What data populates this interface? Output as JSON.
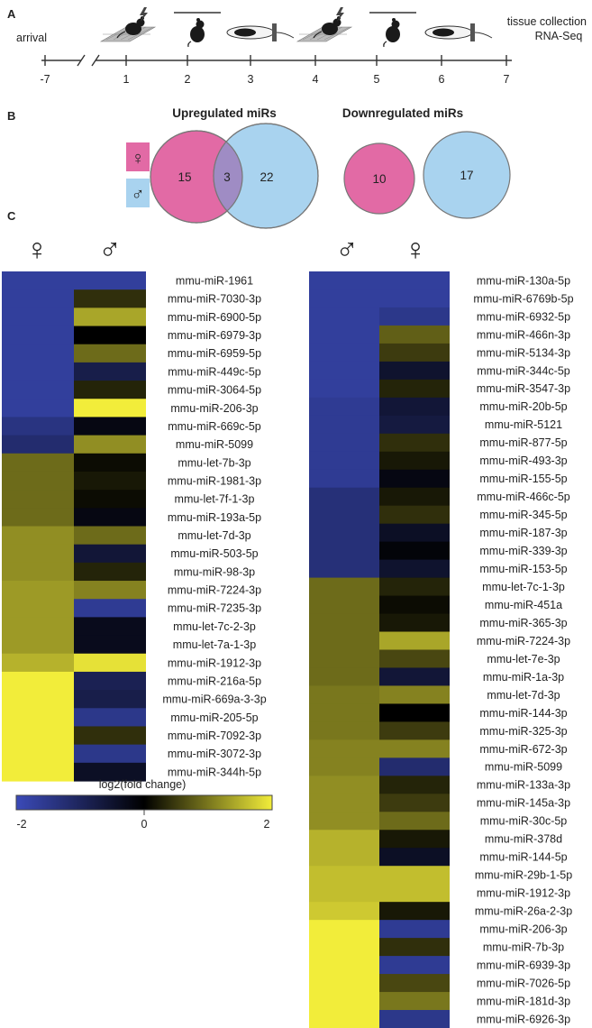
{
  "panels": {
    "a": "A",
    "b": "B",
    "c": "C"
  },
  "timeline": {
    "ticks": [
      "-7",
      "1",
      "2",
      "3",
      "4",
      "5",
      "6",
      "7"
    ],
    "label_arrival": "arrival",
    "label_collection_1": "tissue collection",
    "label_collection_2": "RNA-Seq"
  },
  "venn": {
    "up": {
      "title": "Upregulated miRs",
      "female_only": "15",
      "overlap": "3",
      "male_only": "22"
    },
    "down": {
      "title": "Downregulated miRs",
      "female_only": "10",
      "male_only": "17"
    },
    "colors": {
      "female": "#e26aa5",
      "male": "#a9d3ef",
      "overlap": "#9f8cc4"
    }
  },
  "symbols": {
    "female": "♀",
    "male": "♂"
  },
  "colorbar": {
    "label": "log2(fold change)",
    "min": "-2",
    "mid": "0",
    "max": "2",
    "low_color": "#3b4ab8",
    "mid_color": "#000000",
    "high_color": "#f2ed3a"
  },
  "chart_data": [
    {
      "type": "heatmap",
      "title": "Upregulated miRs",
      "columns": [
        "♀",
        "♂"
      ],
      "rows": [
        "mmu-miR-1961",
        "mmu-miR-7030-3p",
        "mmu-miR-6900-5p",
        "mmu-miR-6979-3p",
        "mmu-miR-6959-5p",
        "mmu-miR-449c-5p",
        "mmu-miR-3064-5p",
        "mmu-miR-206-3p",
        "mmu-miR-669c-5p",
        "mmu-miR-5099",
        "mmu-let-7b-3p",
        "mmu-miR-1981-3p",
        "mmu-let-7f-1-3p",
        "mmu-miR-193a-5p",
        "mmu-let-7d-3p",
        "mmu-miR-503-5p",
        "mmu-miR-98-3p",
        "mmu-miR-7224-3p",
        "mmu-miR-7235-3p",
        "mmu-let-7c-2-3p",
        "mmu-let-7a-1-3p",
        "mmu-miR-1912-3p",
        "mmu-miR-216a-5p",
        "mmu-miR-669a-3-3p",
        "mmu-miR-205-5p",
        "mmu-miR-7092-3p",
        "mmu-miR-3072-3p",
        "mmu-miR-344h-5p"
      ],
      "values": [
        [
          -1.7,
          -1.7
        ],
        [
          -1.7,
          0.4
        ],
        [
          -1.7,
          1.4
        ],
        [
          -1.7,
          0.0
        ],
        [
          -1.7,
          0.9
        ],
        [
          -1.7,
          -0.8
        ],
        [
          -1.7,
          0.3
        ],
        [
          -1.7,
          2.0
        ],
        [
          -1.4,
          -0.2
        ],
        [
          -1.2,
          1.2
        ],
        [
          0.9,
          0.1
        ],
        [
          0.9,
          0.2
        ],
        [
          0.9,
          0.1
        ],
        [
          0.9,
          -0.2
        ],
        [
          1.2,
          0.9
        ],
        [
          1.2,
          -0.6
        ],
        [
          1.2,
          0.3
        ],
        [
          1.3,
          1.1
        ],
        [
          1.3,
          -1.6
        ],
        [
          1.3,
          -0.3
        ],
        [
          1.3,
          -0.3
        ],
        [
          1.5,
          1.9
        ],
        [
          2.0,
          -0.9
        ],
        [
          2.0,
          -0.8
        ],
        [
          2.0,
          -1.5
        ],
        [
          2.0,
          0.4
        ],
        [
          2.0,
          -1.5
        ],
        [
          2.0,
          -0.4
        ]
      ],
      "clim": [
        -2,
        2
      ]
    },
    {
      "type": "heatmap",
      "title": "Downregulated miRs",
      "columns": [
        "♂",
        "♀"
      ],
      "rows": [
        "mmu-miR-130a-5p",
        "mmu-miR-6769b-5p",
        "mmu-miR-6932-5p",
        "mmu-miR-466n-3p",
        "mmu-miR-5134-3p",
        "mmu-miR-344c-5p",
        "mmu-miR-3547-3p",
        "mmu-miR-20b-5p",
        "mmu-miR-5121",
        "mmu-miR-877-5p",
        "mmu-miR-493-3p",
        "mmu-miR-155-5p",
        "mmu-miR-466c-5p",
        "mmu-miR-345-5p",
        "mmu-miR-187-3p",
        "mmu-miR-339-3p",
        "mmu-miR-153-5p",
        "mmu-let-7c-1-3p",
        "mmu-miR-451a",
        "mmu-miR-365-3p",
        "mmu-miR-7224-3p",
        "mmu-let-7e-3p",
        "mmu-miR-1a-3p",
        "mmu-let-7d-3p",
        "mmu-miR-144-3p",
        "mmu-miR-325-3p",
        "mmu-miR-672-3p",
        "mmu-miR-5099",
        "mmu-miR-133a-3p",
        "mmu-miR-145a-3p",
        "mmu-miR-30c-5p",
        "mmu-miR-378d",
        "mmu-miR-144-5p",
        "mmu-miR-29b-1-5p",
        "mmu-miR-1912-3p",
        "mmu-miR-26a-2-3p",
        "mmu-miR-206-3p",
        "mmu-miR-7b-3p",
        "mmu-miR-6939-3p",
        "mmu-miR-7026-5p",
        "mmu-miR-181d-3p",
        "mmu-miR-6926-3p"
      ],
      "values": [
        [
          -1.7,
          -1.7
        ],
        [
          -1.7,
          -1.7
        ],
        [
          -1.7,
          -1.5
        ],
        [
          -1.7,
          0.8
        ],
        [
          -1.7,
          0.5
        ],
        [
          -1.7,
          -0.5
        ],
        [
          -1.7,
          0.3
        ],
        [
          -1.6,
          -0.6
        ],
        [
          -1.6,
          -0.7
        ],
        [
          -1.6,
          0.4
        ],
        [
          -1.6,
          0.2
        ],
        [
          -1.6,
          -0.2
        ],
        [
          -1.3,
          0.2
        ],
        [
          -1.3,
          0.4
        ],
        [
          -1.3,
          -0.4
        ],
        [
          -1.3,
          -0.1
        ],
        [
          -1.3,
          -0.5
        ],
        [
          0.9,
          0.3
        ],
        [
          0.9,
          0.1
        ],
        [
          0.9,
          0.2
        ],
        [
          0.9,
          1.4
        ],
        [
          0.9,
          0.6
        ],
        [
          0.9,
          -0.6
        ],
        [
          1.0,
          1.1
        ],
        [
          1.0,
          0.0
        ],
        [
          1.0,
          0.5
        ],
        [
          1.1,
          1.1
        ],
        [
          1.1,
          -1.2
        ],
        [
          1.2,
          0.3
        ],
        [
          1.2,
          0.5
        ],
        [
          1.2,
          0.9
        ],
        [
          1.5,
          0.2
        ],
        [
          1.5,
          -0.4
        ],
        [
          1.6,
          1.6
        ],
        [
          1.6,
          1.6
        ],
        [
          1.7,
          0.2
        ],
        [
          2.0,
          -1.6
        ],
        [
          2.0,
          0.4
        ],
        [
          2.0,
          -1.6
        ],
        [
          2.0,
          0.6
        ],
        [
          2.0,
          1.0
        ],
        [
          2.0,
          -1.5
        ]
      ],
      "clim": [
        -2,
        2
      ]
    }
  ]
}
